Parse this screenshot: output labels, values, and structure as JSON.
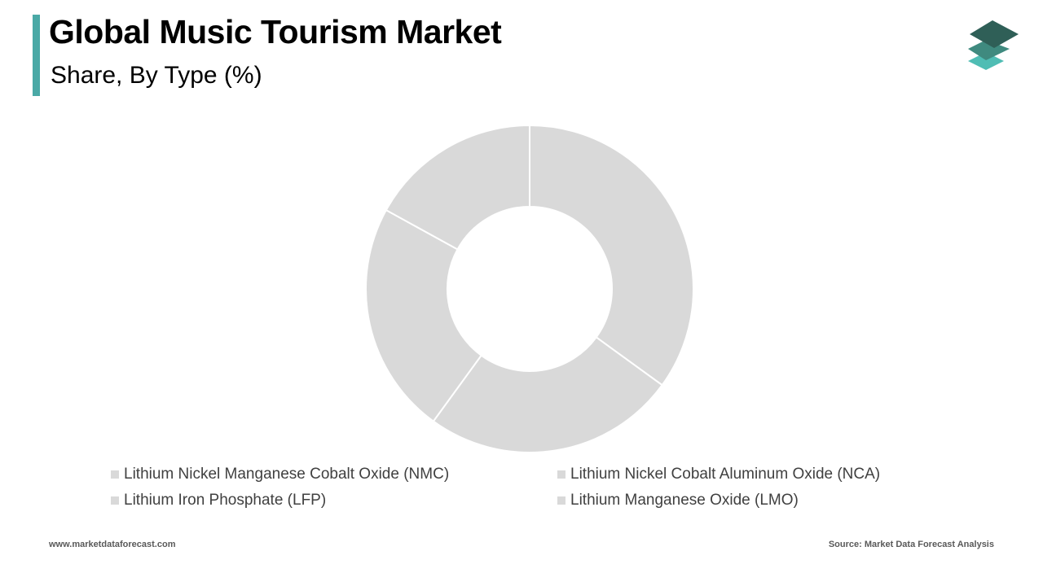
{
  "header": {
    "title": "Global Music Tourism Market",
    "subtitle": "Share, By Type (%)"
  },
  "logo": {
    "icon": "stacked-layers-logo",
    "colors": [
      "#2f5f57",
      "#3f8a7f",
      "#4fbdb4"
    ]
  },
  "colors": {
    "accent": "#4aa9a6",
    "slice_fill": "#d9d9d9",
    "slice_border": "#ffffff"
  },
  "chart_data": {
    "type": "pie",
    "categories": [
      "Lithium Nickel Manganese Cobalt Oxide (NMC)",
      "Lithium Nickel Cobalt Aluminum Oxide (NCA)",
      "Lithium Iron Phosphate (LFP)",
      "Lithium Manganese Oxide (LMO)"
    ],
    "values": [
      35,
      25,
      23,
      17
    ],
    "donut": true,
    "legend_position": "bottom",
    "title": "Global Music Tourism Market",
    "subtitle": "Share, By Type (%)"
  },
  "legend": {
    "items": [
      "Lithium Nickel Manganese Cobalt Oxide (NMC)",
      "Lithium Nickel Cobalt Aluminum Oxide (NCA)",
      "Lithium Iron Phosphate (LFP)",
      "Lithium Manganese Oxide (LMO)"
    ]
  },
  "footer": {
    "website": "www.marketdataforecast.com",
    "source": "Source: Market Data Forecast Analysis"
  }
}
